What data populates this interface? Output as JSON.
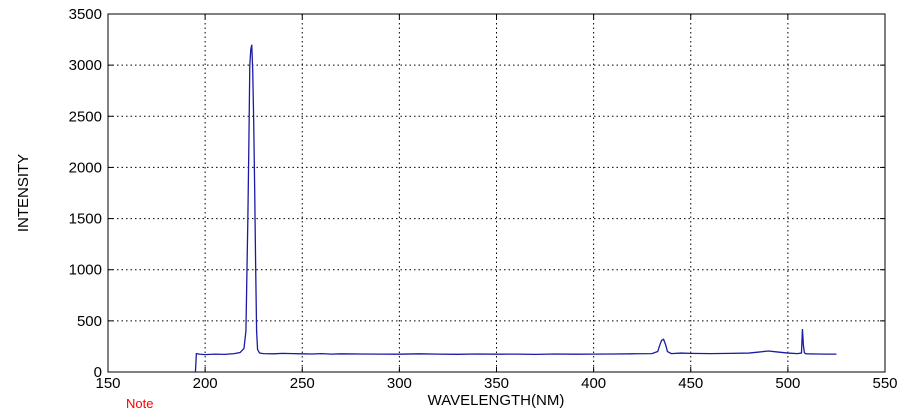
{
  "chart_data": {
    "type": "line",
    "title": "",
    "xlabel": "WAVELENGTH(NM)",
    "ylabel": "INTENSITY",
    "xlim": [
      150,
      550
    ],
    "ylim": [
      0,
      3500
    ],
    "xticks": [
      150,
      200,
      250,
      300,
      350,
      400,
      450,
      500,
      550
    ],
    "yticks": [
      0,
      500,
      1000,
      1500,
      2000,
      2500,
      3000,
      3500
    ],
    "grid": true,
    "legend": "none",
    "line_color": "#1a1aa6",
    "series": [
      {
        "x": [
          195,
          195.5,
          197,
          200,
          205,
          210,
          215,
          218,
          220,
          221,
          222,
          222.5,
          223,
          223.5,
          224,
          224.5,
          225,
          225.5,
          226,
          226.5,
          227,
          228,
          230,
          235,
          240,
          245,
          250,
          255,
          260,
          265,
          270,
          280,
          290,
          300,
          310,
          320,
          330,
          340,
          350,
          360,
          370,
          380,
          390,
          400,
          410,
          420,
          430,
          433,
          434,
          435,
          436,
          437,
          438,
          440,
          445,
          450,
          460,
          470,
          480,
          485,
          490,
          495,
          500,
          505,
          507,
          507.5,
          508,
          508.5,
          509,
          510,
          515,
          520,
          525
        ],
        "y": [
          0,
          180,
          175,
          170,
          175,
          172,
          180,
          190,
          230,
          400,
          1500,
          2200,
          3000,
          3150,
          3200,
          2950,
          2450,
          1800,
          1050,
          400,
          220,
          185,
          180,
          178,
          182,
          180,
          178,
          176,
          180,
          175,
          178,
          176,
          175,
          174,
          178,
          175,
          173,
          176,
          174,
          175,
          172,
          176,
          174,
          175,
          176,
          178,
          180,
          200,
          260,
          310,
          320,
          270,
          200,
          180,
          185,
          182,
          180,
          182,
          185,
          195,
          205,
          195,
          185,
          180,
          185,
          420,
          260,
          190,
          180,
          178,
          176,
          175,
          175
        ]
      }
    ]
  },
  "note": {
    "label": "Note"
  }
}
